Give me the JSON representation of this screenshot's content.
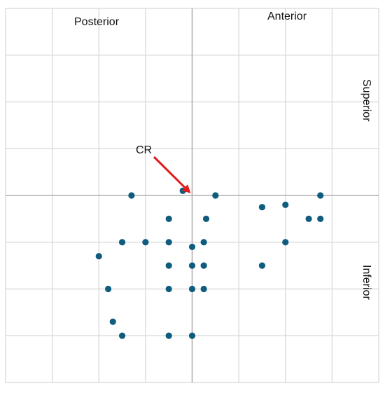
{
  "chart_data": {
    "type": "scatter",
    "labels": {
      "left_top": "Posterior",
      "right_top": "Anterior",
      "right_upper": "Superior",
      "right_lower": "Inferior"
    },
    "annotation": {
      "text": "CR",
      "target": [
        0,
        0
      ]
    },
    "xlim": [
      -4,
      4
    ],
    "ylim": [
      -4,
      4
    ],
    "grid": true,
    "point_color": "#0f5c7e",
    "axis_color": "#b0b0b0",
    "grid_color": "#d6d6d6",
    "arrow_color": "#e31b1b",
    "points": [
      {
        "x": -1.3,
        "y": 0
      },
      {
        "x": -0.2,
        "y": 0.1
      },
      {
        "x": 0.5,
        "y": 0
      },
      {
        "x": 1.5,
        "y": -0.25
      },
      {
        "x": 2.0,
        "y": -0.2
      },
      {
        "x": 2.75,
        "y": 0
      },
      {
        "x": 2.5,
        "y": -0.5
      },
      {
        "x": 2.75,
        "y": -0.5
      },
      {
        "x": -0.5,
        "y": -0.5
      },
      {
        "x": 0.3,
        "y": -0.5
      },
      {
        "x": -1.5,
        "y": -1
      },
      {
        "x": -1.0,
        "y": -1
      },
      {
        "x": -0.5,
        "y": -1
      },
      {
        "x": 0,
        "y": -1.1
      },
      {
        "x": 0.25,
        "y": -1
      },
      {
        "x": 2.0,
        "y": -1
      },
      {
        "x": -2.0,
        "y": -1.3
      },
      {
        "x": -0.5,
        "y": -1.5
      },
      {
        "x": 0,
        "y": -1.5
      },
      {
        "x": 0.25,
        "y": -1.5
      },
      {
        "x": 1.5,
        "y": -1.5
      },
      {
        "x": -1.8,
        "y": -2
      },
      {
        "x": -0.5,
        "y": -2
      },
      {
        "x": 0,
        "y": -2
      },
      {
        "x": 0.25,
        "y": -2
      },
      {
        "x": -1.7,
        "y": -2.7
      },
      {
        "x": -1.5,
        "y": -3
      },
      {
        "x": -0.5,
        "y": -3
      },
      {
        "x": 0,
        "y": -3
      }
    ]
  }
}
